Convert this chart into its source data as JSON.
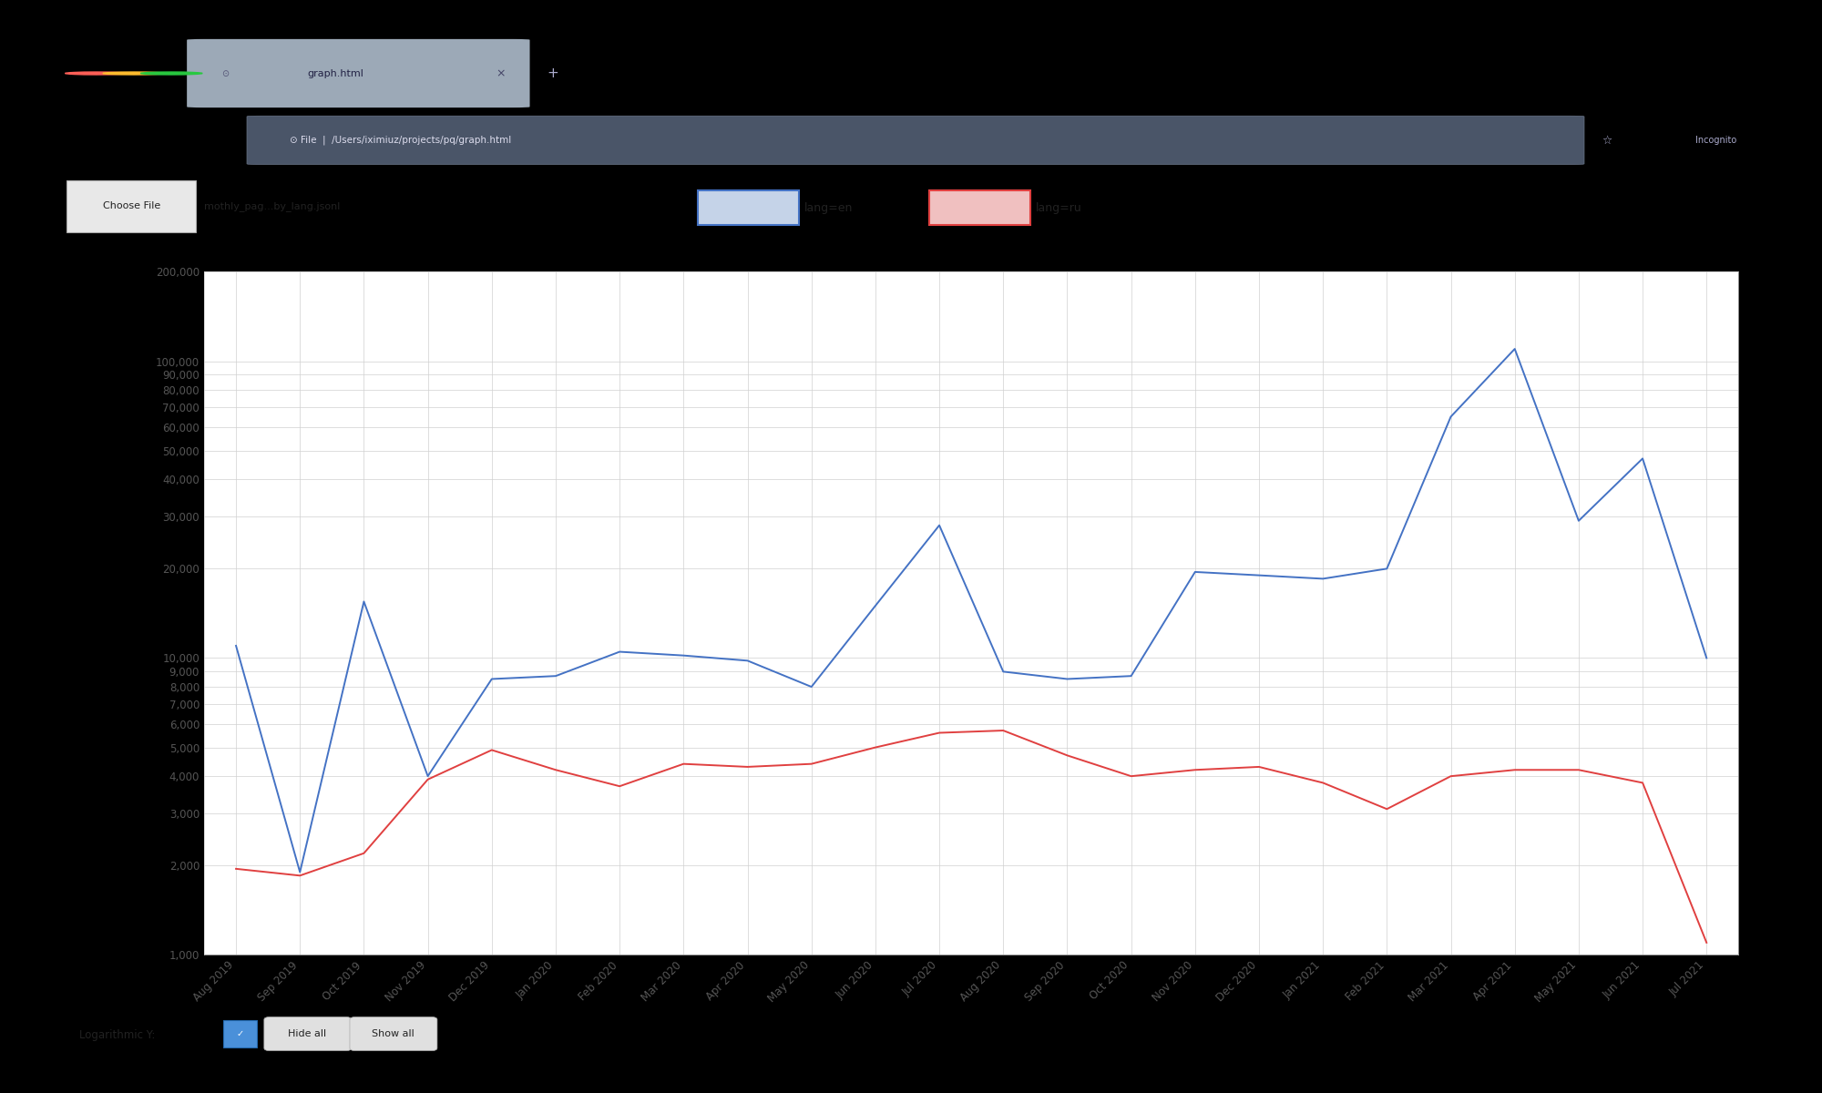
{
  "en_values": [
    11000,
    1900,
    15500,
    4000,
    8500,
    8700,
    10500,
    10200,
    9800,
    8000,
    15000,
    28000,
    9000,
    8500,
    8700,
    19500,
    19000,
    18500,
    20000,
    65000,
    110000,
    29000,
    47000,
    10000
  ],
  "ru_values": [
    1950,
    1850,
    2200,
    3900,
    4900,
    4200,
    3700,
    4400,
    4300,
    4400,
    5000,
    5600,
    5700,
    4700,
    4000,
    4200,
    4300,
    3800,
    3100,
    4000,
    4200,
    4200,
    3800,
    1100
  ],
  "en_color": "#4472c4",
  "ru_color": "#e04040",
  "legend_en": "lang=en",
  "legend_ru": "lang=ru",
  "ylim_min": 1000,
  "ylim_max": 200000,
  "plot_bg_color": "#ffffff",
  "grid_color": "#d0d0d0",
  "tick_labels": [
    "Aug 2019",
    "Sep 2019",
    "Oct 2019",
    "Nov 2019",
    "Dec 2019",
    "Jan 2020",
    "Feb 2020",
    "Mar 2020",
    "Apr 2020",
    "May 2020",
    "Jun 2020",
    "Jul 2020",
    "Aug 2020",
    "Sep 2020",
    "Oct 2020",
    "Nov 2020",
    "Dec 2020",
    "Jan 2021",
    "Feb 2021",
    "Mar 2021",
    "Apr 2021",
    "May 2021",
    "Jun 2021",
    "Jul 2021"
  ],
  "yticks": [
    1000,
    2000,
    3000,
    4000,
    5000,
    6000,
    7000,
    8000,
    9000,
    10000,
    20000,
    30000,
    40000,
    50000,
    60000,
    70000,
    80000,
    90000,
    100000,
    200000
  ],
  "chrome_outer_bg": "#1a1a2e",
  "chrome_tab_bar_bg": "#2d3748",
  "chrome_addr_bar_bg": "#3a4556",
  "content_bg": "#f5f5f5",
  "tab_active_color": "#c8d4e0",
  "btn_red": "#ff5f57",
  "btn_yellow": "#febc2e",
  "btn_green": "#28c840",
  "addr_text_color": "#e0e0e0",
  "file_chooser_text": "mothly_pag...by_lang.jsonl",
  "addr_bar_text": "/Users/iximiuz/projects/pq/graph.html"
}
